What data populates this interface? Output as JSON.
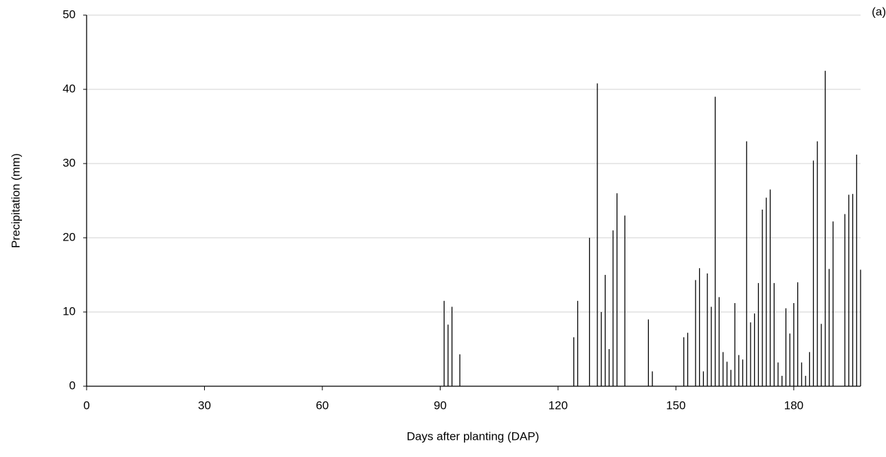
{
  "chart_data": {
    "type": "bar",
    "annotation": "(a)",
    "x_label": "Days after planting (DAP)",
    "y_label": "Precipitation (mm)",
    "x": [
      91,
      92,
      93,
      95,
      124,
      125,
      128,
      130,
      131,
      132,
      133,
      134,
      135,
      137,
      143,
      144,
      152,
      153,
      155,
      156,
      157,
      158,
      159,
      160,
      161,
      162,
      163,
      164,
      165,
      166,
      167,
      168,
      169,
      170,
      171,
      172,
      173,
      174,
      175,
      176,
      177,
      178,
      179,
      180,
      181,
      182,
      183,
      184,
      185,
      186,
      187,
      188,
      189,
      190,
      193,
      194,
      195,
      196,
      197
    ],
    "values": [
      11.5,
      8.3,
      10.7,
      4.3,
      6.6,
      11.5,
      20,
      40.8,
      10,
      15,
      5,
      21,
      26,
      23,
      9,
      2,
      6.6,
      7.2,
      14.3,
      15.9,
      2,
      15.2,
      10.7,
      39,
      12,
      4.6,
      3.3,
      2.2,
      11.2,
      4.2,
      3.6,
      33,
      8.6,
      9.8,
      13.9,
      23.8,
      25.4,
      26.5,
      13.9,
      3.2,
      1.4,
      10.5,
      7.1,
      11.2,
      14,
      3.2,
      1.4,
      4.6,
      30.4,
      33,
      8.4,
      42.5,
      15.8,
      22.2,
      23.2,
      25.8,
      25.9,
      31.2,
      15.7
    ],
    "color": "#000000",
    "xlim": [
      0,
      197
    ],
    "xticks": [
      0,
      30,
      60,
      90,
      120,
      150,
      180
    ],
    "ylim": [
      0,
      50
    ],
    "yticks": [
      0,
      10,
      20,
      30,
      40,
      50
    ],
    "grid": true
  }
}
